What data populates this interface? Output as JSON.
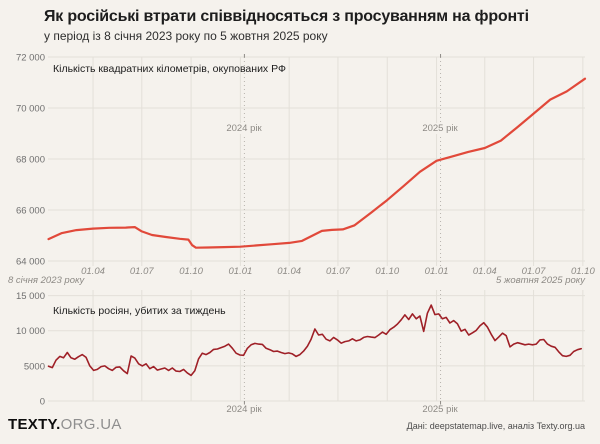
{
  "page": {
    "title": "Як російські втрати співвідносяться з просуванням на фронті",
    "subtitle": "у період із 8 січня 2023 року по 5 жовтня 2025 року"
  },
  "footer": {
    "logo_bold": "TEXTY.",
    "logo_rest": "ORG.UA",
    "credit": "Дані: deepstatemap.live, аналіз Texty.org.ua"
  },
  "colors": {
    "background": "#f5f2ed",
    "occupied_line": "#e1493a",
    "killed_line": "#9f2027",
    "grid": "#e3e0d9",
    "year_line": "#b8b4ad",
    "tick_mark": "#8d8a85"
  },
  "chart_data": [
    {
      "id": "occupied-area",
      "type": "line",
      "title": "Кількість квадратних кілометрів, окупованих РФ",
      "x_start_label": "8 січня 2023 року",
      "x_end_label": "5 жовтня 2025 року",
      "x_tick_labels": [
        "01.04",
        "01.07",
        "01.10",
        "01.01",
        "01.04",
        "01.07",
        "01.10",
        "01.01",
        "01.04",
        "01.07",
        "01.10"
      ],
      "y_ticks": [
        64000,
        66000,
        68000,
        70000,
        72000
      ],
      "y_tick_labels": [
        "64 000",
        "66 000",
        "68 000",
        "70 000",
        "72 000"
      ],
      "ylim": [
        63650,
        72000
      ],
      "grid": true,
      "year_annotations": [
        {
          "label": "2024 рік",
          "date": "2024-01-01"
        },
        {
          "label": "2025 рік",
          "date": "2025-01-01"
        }
      ],
      "dates": [
        "2023-01-08",
        "2023-02-01",
        "2023-03-01",
        "2023-04-01",
        "2023-05-01",
        "2023-06-01",
        "2023-06-18",
        "2023-07-01",
        "2023-07-20",
        "2023-08-15",
        "2023-09-10",
        "2023-09-26",
        "2023-10-03",
        "2023-10-10",
        "2023-11-01",
        "2023-12-01",
        "2024-01-01",
        "2024-02-01",
        "2024-03-01",
        "2024-04-01",
        "2024-04-25",
        "2024-05-15",
        "2024-06-01",
        "2024-06-20",
        "2024-07-10",
        "2024-08-01",
        "2024-09-01",
        "2024-10-01",
        "2024-11-01",
        "2024-12-01",
        "2025-01-01",
        "2025-02-01",
        "2025-03-01",
        "2025-04-01",
        "2025-05-01",
        "2025-06-01",
        "2025-07-01",
        "2025-08-01",
        "2025-09-01",
        "2025-10-05"
      ],
      "values": [
        64860,
        65090,
        65210,
        65270,
        65300,
        65310,
        65330,
        65160,
        65020,
        64940,
        64870,
        64840,
        64620,
        64520,
        64530,
        64545,
        64560,
        64610,
        64660,
        64710,
        64790,
        65000,
        65180,
        65220,
        65240,
        65400,
        65900,
        66390,
        66950,
        67500,
        67930,
        68110,
        68280,
        68430,
        68720,
        69250,
        69780,
        70330,
        70650,
        71150
      ]
    },
    {
      "id": "weekly-killed",
      "type": "line",
      "title": "Кількість росіян, убитих за тиждень",
      "start_date": "2023-01-08",
      "step_days": 7,
      "y_ticks": [
        0,
        5000,
        10000,
        15000
      ],
      "y_tick_labels": [
        "0",
        "5000",
        "10 000",
        "15 000"
      ],
      "ylim": [
        0,
        15000
      ],
      "grid": true,
      "year_annotations": [
        {
          "label": "2024 рік",
          "date": "2024-01-01"
        },
        {
          "label": "2025 рік",
          "date": "2025-01-01"
        }
      ],
      "values": [
        4950,
        4750,
        5800,
        6350,
        6150,
        6900,
        6150,
        5950,
        6300,
        6600,
        6200,
        5000,
        4350,
        4500,
        4900,
        5000,
        4600,
        4350,
        4800,
        4850,
        4300,
        3900,
        6400,
        6100,
        5300,
        5000,
        5300,
        4600,
        4900,
        4400,
        4550,
        4700,
        4350,
        4700,
        4250,
        4200,
        4500,
        4000,
        3650,
        4300,
        6000,
        6800,
        6600,
        6900,
        7350,
        7400,
        7600,
        7800,
        8100,
        7500,
        6800,
        6550,
        6500,
        7500,
        8000,
        8200,
        8100,
        8050,
        7500,
        7300,
        7050,
        7100,
        6900,
        6750,
        6850,
        6700,
        6350,
        6600,
        7100,
        7800,
        8800,
        10250,
        9400,
        9500,
        8800,
        8550,
        9050,
        8700,
        8230,
        8450,
        8550,
        8850,
        8550,
        8700,
        9050,
        9180,
        9100,
        9030,
        9400,
        9800,
        9500,
        10150,
        10500,
        10950,
        11550,
        12250,
        11600,
        12400,
        11700,
        12100,
        9900,
        12500,
        13650,
        12300,
        12400,
        11700,
        11900,
        11100,
        11450,
        11000,
        9950,
        10200,
        9400,
        9700,
        10050,
        10700,
        11150,
        10500,
        9500,
        8600,
        9100,
        9650,
        9300,
        7700,
        8100,
        8300,
        8150,
        8000,
        8100,
        8000,
        8100,
        8700,
        8750,
        8100,
        7800,
        7650,
        7000,
        6450,
        6350,
        6500,
        7050,
        7300,
        7450
      ]
    }
  ]
}
